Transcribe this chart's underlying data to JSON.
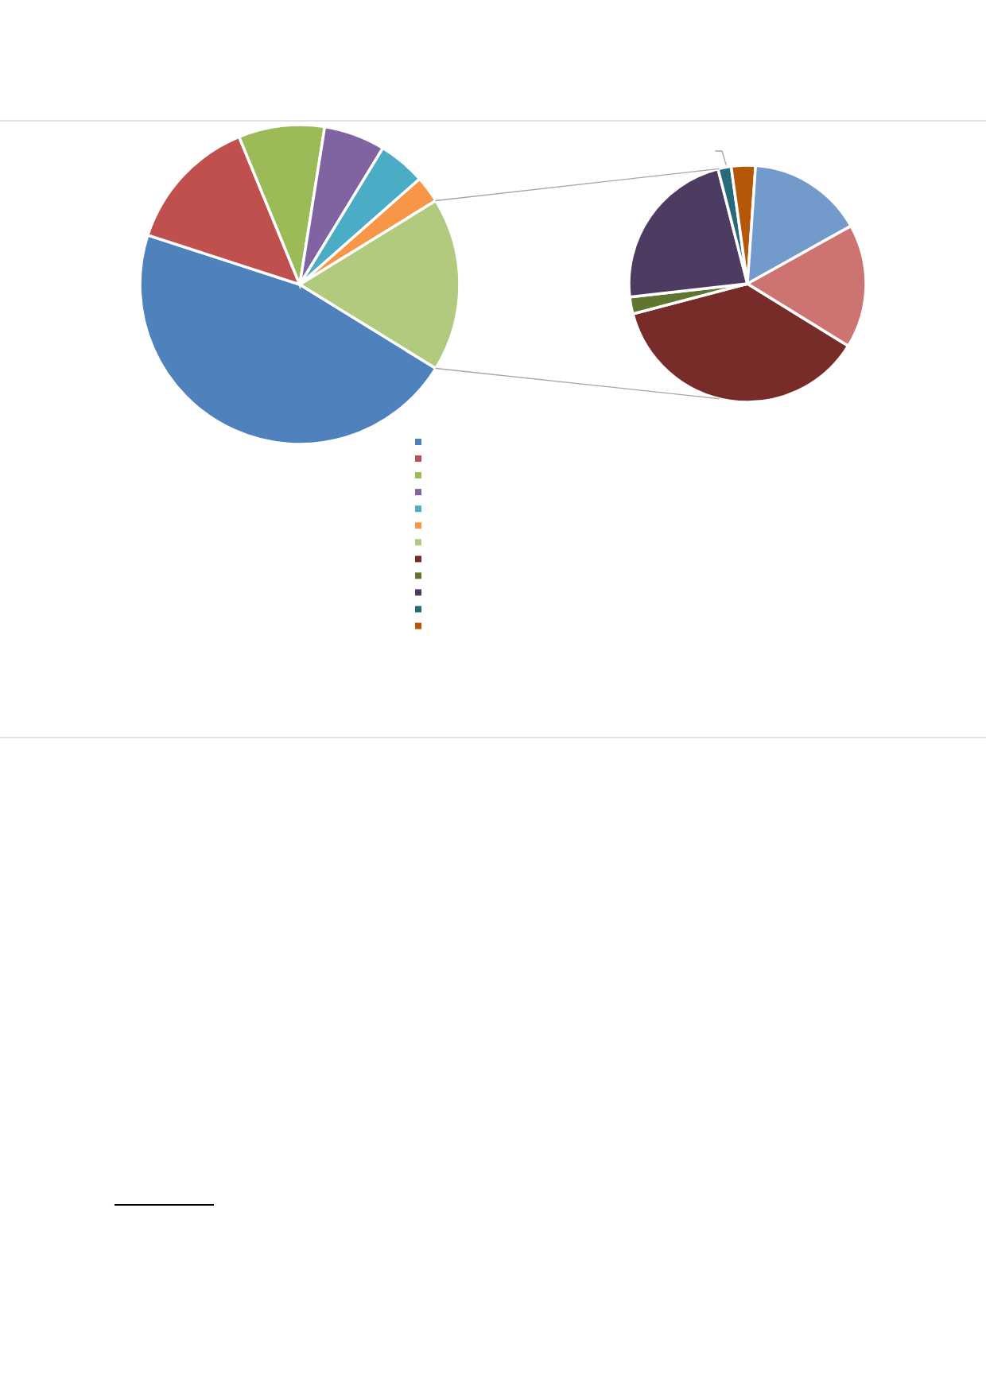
{
  "chart_data": [
    {
      "type": "pie",
      "categories": [
        null,
        null,
        null,
        null,
        null,
        null,
        null
      ],
      "values": [
        46.2,
        13.8,
        8.7,
        6.2,
        4.8,
        2.7,
        17.6
      ],
      "colors": [
        "#4f81bd",
        "#c0504d",
        "#9bbb59",
        "#8064a2",
        "#4bacc6",
        "#f79646",
        "#b1ca7d"
      ]
    },
    {
      "type": "pie",
      "categories": [
        null,
        null,
        null,
        null,
        null,
        null,
        null
      ],
      "values": [
        37.1,
        2.3,
        22.8,
        1.8,
        3.3,
        15.8,
        16.9
      ],
      "colors": [
        "#772c2a",
        "#5f7530",
        "#4d3b62",
        "#276a7c",
        "#b65708",
        "#729aca",
        "#cd7371"
      ]
    }
  ]
}
